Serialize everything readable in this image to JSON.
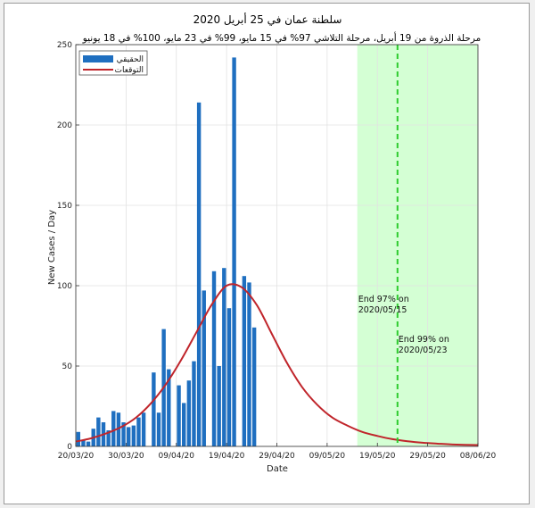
{
  "chart_data": {
    "type": "bar",
    "title": "سلطنة عمان في 25 أبريل 2020",
    "subtitle": "مرحلة الذروة من 19 أبريل، مرحلة التلاشي 97% في 15 مايو، 99% في 23 مايو، 100% في 18 يونيو",
    "xlabel": "Date",
    "ylabel": "New Cases / Day",
    "ylim": [
      0,
      250
    ],
    "xlim": [
      "2020-03-20",
      "2020-06-08"
    ],
    "yticks": [
      0,
      50,
      100,
      150,
      200,
      250
    ],
    "xtick_labels": [
      "20/03/20",
      "30/03/20",
      "09/04/20",
      "19/04/20",
      "29/04/20",
      "09/05/20",
      "19/05/20",
      "29/05/20",
      "08/06/20"
    ],
    "legend": {
      "placement": "top-left",
      "entries": [
        "الحقيقي",
        "التوقعات"
      ]
    },
    "grid": true,
    "colors": {
      "actual": "#1f6fc0",
      "forecast": "#c0252b",
      "shade": "#ccffcc",
      "marker": "#2ecc2e"
    },
    "series": [
      {
        "name": "الحقيقي",
        "kind": "bar",
        "dates": [
          "2020-03-20",
          "2020-03-21",
          "2020-03-22",
          "2020-03-23",
          "2020-03-24",
          "2020-03-25",
          "2020-03-26",
          "2020-03-27",
          "2020-03-28",
          "2020-03-29",
          "2020-03-30",
          "2020-03-31",
          "2020-04-01",
          "2020-04-02",
          "2020-04-03",
          "2020-04-04",
          "2020-04-05",
          "2020-04-06",
          "2020-04-07",
          "2020-04-08",
          "2020-04-09",
          "2020-04-10",
          "2020-04-11",
          "2020-04-12",
          "2020-04-13",
          "2020-04-14",
          "2020-04-15",
          "2020-04-16",
          "2020-04-17",
          "2020-04-18",
          "2020-04-19",
          "2020-04-20",
          "2020-04-21",
          "2020-04-22",
          "2020-04-23",
          "2020-04-24",
          "2020-04-25"
        ],
        "values": [
          9,
          4,
          3,
          11,
          18,
          15,
          10,
          22,
          21,
          15,
          12,
          13,
          18,
          21,
          0,
          46,
          21,
          73,
          48,
          0,
          38,
          27,
          41,
          53,
          214,
          97,
          0,
          109,
          50,
          111,
          86,
          242,
          0,
          106,
          102,
          74,
          0
        ]
      },
      {
        "name": "التوقعات",
        "kind": "line",
        "dates": [
          "2020-03-20",
          "2020-03-23",
          "2020-03-26",
          "2020-03-29",
          "2020-04-01",
          "2020-04-04",
          "2020-04-07",
          "2020-04-10",
          "2020-04-13",
          "2020-04-16",
          "2020-04-19",
          "2020-04-22",
          "2020-04-25",
          "2020-04-28",
          "2020-05-01",
          "2020-05-04",
          "2020-05-07",
          "2020-05-10",
          "2020-05-13",
          "2020-05-16",
          "2020-05-19",
          "2020-05-22",
          "2020-05-25",
          "2020-05-28",
          "2020-05-31",
          "2020-06-03",
          "2020-06-08"
        ],
        "values": [
          3,
          5,
          8,
          12,
          18,
          27,
          39,
          54,
          71,
          88,
          100,
          99,
          88,
          70,
          52,
          37,
          26,
          18,
          13,
          9,
          6.5,
          4.5,
          3.2,
          2.3,
          1.7,
          1.2,
          0.8
        ]
      }
    ],
    "annotations": [
      {
        "text_lines": [
          "End 97% on",
          "2020/05/15"
        ],
        "x": "2020-05-15",
        "y": 90
      },
      {
        "text_lines": [
          "End 99% on",
          "2020/05/23"
        ],
        "x": "2020-05-23",
        "y": 65
      }
    ],
    "shaded_region": {
      "from": "2020-05-15",
      "to": "2020-06-08"
    },
    "vertical_marker": {
      "x": "2020-05-23",
      "style": "dashed"
    }
  }
}
